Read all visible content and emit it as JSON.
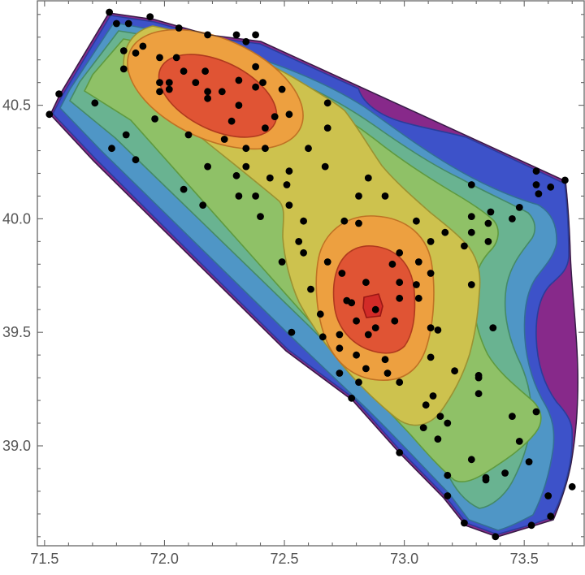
{
  "chart_data": {
    "type": "contour",
    "title": "",
    "xlabel": "",
    "ylabel": "",
    "xlim": [
      71.47,
      73.75
    ],
    "ylim": [
      38.56,
      40.96
    ],
    "grid": false,
    "legend": "none",
    "frame": true,
    "x_major_ticks": [
      71.5,
      72.0,
      72.5,
      73.0,
      73.5
    ],
    "x_major_labels": [
      "71.5",
      "72.0",
      "72.5",
      "73.0",
      "73.5"
    ],
    "y_major_ticks": [
      39.0,
      39.5,
      40.0,
      40.5
    ],
    "y_major_labels": [
      "39.0",
      "39.5",
      "40.0",
      "40.5"
    ],
    "minor_tick_step": 0.1,
    "axis_color": "#666666",
    "label_color": "#555555",
    "point_color": "#000000",
    "point_radius": 4.4,
    "peaks": [
      {
        "x": 72.22,
        "y": 40.55,
        "note": "northwest hotspot"
      },
      {
        "x": 72.87,
        "y": 39.62,
        "note": "southeast hotspot, innermost level"
      }
    ],
    "bands_low_to_high": [
      {
        "name": "purple",
        "fill": "#87298A",
        "line": "#5A1C60"
      },
      {
        "name": "royal-blue",
        "fill": "#3D52C9",
        "line": "#2A3C9A"
      },
      {
        "name": "steel-blue",
        "fill": "#4F96C6",
        "line": "#336F94"
      },
      {
        "name": "sea-green",
        "fill": "#69B391",
        "line": "#458A66"
      },
      {
        "name": "green",
        "fill": "#8FC167",
        "line": "#5F9A3F"
      },
      {
        "name": "olive-yellow",
        "fill": "#CDC24E",
        "line": "#9A9232"
      },
      {
        "name": "orange",
        "fill": "#EDA040",
        "line": "#BF7224"
      },
      {
        "name": "red",
        "fill": "#E05434",
        "line": "#B03A1E"
      },
      {
        "name": "bright-red",
        "fill": "#D22B28",
        "line": "#991714"
      }
    ],
    "points": [
      [
        71.8,
        40.86
      ],
      [
        71.85,
        40.86
      ],
      [
        71.94,
        40.89
      ],
      [
        72.06,
        40.84
      ],
      [
        72.18,
        40.81
      ],
      [
        72.3,
        40.81
      ],
      [
        72.38,
        40.81
      ],
      [
        72.34,
        40.78
      ],
      [
        71.91,
        40.76
      ],
      [
        71.83,
        40.74
      ],
      [
        71.88,
        40.73
      ],
      [
        71.98,
        40.71
      ],
      [
        72.05,
        40.71
      ],
      [
        72.38,
        40.67
      ],
      [
        71.83,
        40.66
      ],
      [
        72.08,
        40.65
      ],
      [
        72.17,
        40.65
      ],
      [
        72.31,
        40.61
      ],
      [
        72.13,
        40.6
      ],
      [
        71.98,
        40.6
      ],
      [
        72.02,
        40.6
      ],
      [
        72.41,
        40.6
      ],
      [
        72.18,
        40.56
      ],
      [
        72.24,
        40.56
      ],
      [
        71.98,
        40.56
      ],
      [
        72.02,
        40.57
      ],
      [
        72.38,
        40.58
      ],
      [
        72.18,
        40.53
      ],
      [
        72.31,
        40.5
      ],
      [
        72.46,
        40.45
      ],
      [
        72.49,
        40.57
      ],
      [
        72.52,
        40.46
      ],
      [
        72.28,
        40.43
      ],
      [
        72.34,
        40.31
      ],
      [
        72.42,
        40.31
      ],
      [
        71.71,
        40.51
      ],
      [
        71.96,
        40.44
      ],
      [
        71.84,
        40.37
      ],
      [
        72.1,
        40.37
      ],
      [
        71.78,
        40.31
      ],
      [
        71.88,
        40.26
      ],
      [
        71.52,
        40.46
      ],
      [
        71.56,
        40.55
      ],
      [
        71.77,
        40.91
      ],
      [
        72.08,
        40.13
      ],
      [
        72.16,
        40.06
      ],
      [
        72.18,
        40.23
      ],
      [
        72.34,
        40.23
      ],
      [
        72.3,
        40.19
      ],
      [
        72.44,
        40.18
      ],
      [
        72.31,
        40.1
      ],
      [
        72.38,
        40.1
      ],
      [
        72.4,
        40.01
      ],
      [
        72.58,
        39.99
      ],
      [
        72.56,
        39.9
      ],
      [
        72.58,
        39.85
      ],
      [
        72.49,
        39.81
      ],
      [
        72.53,
        39.5
      ],
      [
        72.52,
        40.21
      ],
      [
        72.52,
        40.06
      ],
      [
        72.51,
        40.15
      ],
      [
        72.25,
        40.35
      ],
      [
        72.42,
        40.4
      ],
      [
        72.68,
        40.51
      ],
      [
        72.68,
        40.4
      ],
      [
        72.6,
        40.31
      ],
      [
        72.67,
        40.23
      ],
      [
        72.85,
        40.18
      ],
      [
        72.81,
        40.1
      ],
      [
        72.92,
        40.1
      ],
      [
        73.28,
        40.15
      ],
      [
        73.48,
        40.05
      ],
      [
        73.55,
        40.21
      ],
      [
        73.55,
        40.15
      ],
      [
        73.56,
        40.11
      ],
      [
        73.61,
        40.14
      ],
      [
        73.67,
        40.17
      ],
      [
        73.36,
        40.03
      ],
      [
        73.28,
        40.01
      ],
      [
        73.45,
        40.0
      ],
      [
        73.35,
        39.98
      ],
      [
        73.28,
        39.94
      ],
      [
        73.35,
        39.9
      ],
      [
        73.25,
        39.88
      ],
      [
        72.75,
        39.99
      ],
      [
        72.81,
        39.98
      ],
      [
        73.05,
        39.99
      ],
      [
        72.61,
        39.69
      ],
      [
        72.68,
        39.81
      ],
      [
        72.74,
        39.76
      ],
      [
        72.84,
        39.72
      ],
      [
        72.95,
        39.8
      ],
      [
        72.98,
        39.85
      ],
      [
        73.06,
        39.81
      ],
      [
        73.11,
        39.9
      ],
      [
        73.17,
        39.94
      ],
      [
        73.11,
        39.76
      ],
      [
        73.05,
        39.71
      ],
      [
        72.98,
        39.65
      ],
      [
        73.06,
        39.65
      ],
      [
        72.76,
        39.64
      ],
      [
        72.65,
        39.58
      ],
      [
        72.88,
        39.6
      ],
      [
        72.8,
        39.55
      ],
      [
        72.96,
        39.55
      ],
      [
        72.88,
        39.52
      ],
      [
        72.85,
        39.49
      ],
      [
        72.73,
        39.49
      ],
      [
        72.66,
        39.48
      ],
      [
        72.73,
        39.43
      ],
      [
        73.11,
        39.52
      ],
      [
        73.14,
        39.51
      ],
      [
        73.28,
        39.71
      ],
      [
        73.37,
        39.52
      ],
      [
        72.98,
        39.72
      ],
      [
        72.78,
        39.63
      ],
      [
        72.8,
        39.4
      ],
      [
        72.92,
        39.38
      ],
      [
        73.11,
        39.39
      ],
      [
        72.84,
        39.34
      ],
      [
        72.93,
        39.32
      ],
      [
        72.73,
        39.32
      ],
      [
        72.98,
        39.28
      ],
      [
        72.81,
        39.28
      ],
      [
        73.21,
        39.33
      ],
      [
        73.31,
        39.31
      ],
      [
        72.78,
        39.21
      ],
      [
        73.31,
        39.23
      ],
      [
        73.12,
        39.22
      ],
      [
        73.09,
        39.18
      ],
      [
        73.15,
        39.13
      ],
      [
        73.08,
        39.08
      ],
      [
        73.18,
        39.1
      ],
      [
        72.98,
        38.97
      ],
      [
        73.28,
        38.94
      ],
      [
        73.18,
        38.87
      ],
      [
        73.34,
        38.86
      ],
      [
        73.18,
        38.78
      ],
      [
        73.31,
        39.3
      ],
      [
        73.45,
        39.13
      ],
      [
        73.55,
        39.15
      ],
      [
        73.48,
        39.02
      ],
      [
        73.52,
        38.93
      ],
      [
        73.42,
        38.88
      ],
      [
        73.34,
        38.85
      ],
      [
        73.14,
        39.03
      ],
      [
        73.25,
        38.66
      ],
      [
        73.38,
        38.6
      ],
      [
        73.53,
        38.65
      ],
      [
        73.61,
        38.69
      ],
      [
        73.7,
        38.82
      ],
      [
        73.6,
        38.78
      ]
    ]
  }
}
